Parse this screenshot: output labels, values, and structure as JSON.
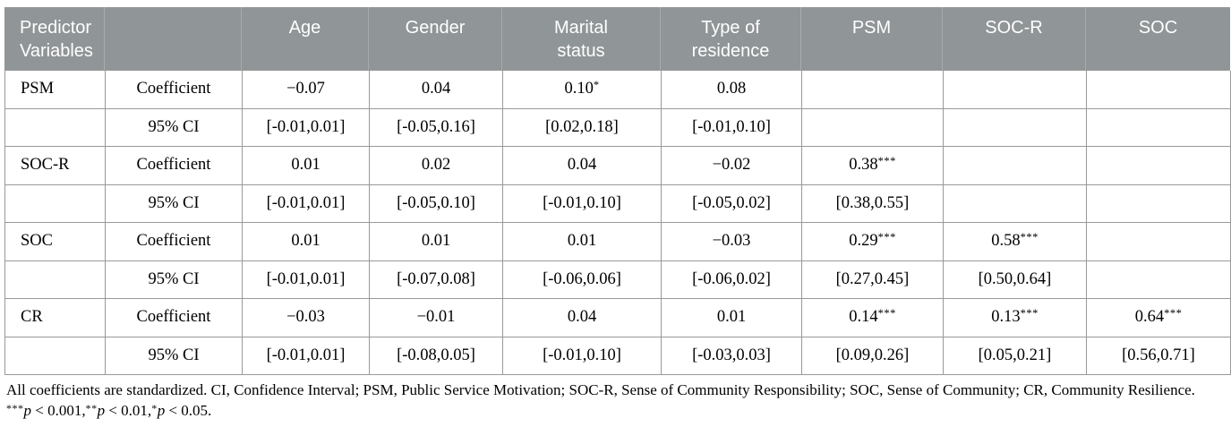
{
  "colors": {
    "header_bg": "#909597",
    "header_text": "#ffffff",
    "header_separator": "#a8abad",
    "grid_line": "#999999",
    "body_text": "#000000"
  },
  "table": {
    "columns": [
      "Predictor\nVariables",
      "",
      "Age",
      "Gender",
      "Marital\nstatus",
      "Type of\nresidence",
      "PSM",
      "SOC-R",
      "SOC"
    ],
    "rows": [
      {
        "predictor": "PSM",
        "label": "Coefficient",
        "values": [
          "−0.07",
          "0.04",
          "0.10*",
          "0.08",
          "",
          "",
          ""
        ]
      },
      {
        "predictor": "",
        "label": "95% CI",
        "values": [
          "[-0.01,0.01]",
          "[-0.05,0.16]",
          "[0.02,0.18]",
          "[-0.01,0.10]",
          "",
          "",
          ""
        ]
      },
      {
        "predictor": "SOC-R",
        "label": "Coefficient",
        "values": [
          "0.01",
          "0.02",
          "0.04",
          "−0.02",
          "0.38***",
          "",
          ""
        ]
      },
      {
        "predictor": "",
        "label": "95% CI",
        "values": [
          "[-0.01,0.01]",
          "[-0.05,0.10]",
          "[-0.01,0.10]",
          "[-0.05,0.02]",
          "[0.38,0.55]",
          "",
          ""
        ]
      },
      {
        "predictor": "SOC",
        "label": "Coefficient",
        "values": [
          "0.01",
          "0.01",
          "0.01",
          "−0.03",
          "0.29***",
          "0.58***",
          ""
        ]
      },
      {
        "predictor": "",
        "label": "95% CI",
        "values": [
          "[-0.01,0.01]",
          "[-0.07,0.08]",
          "[-0.06,0.06]",
          "[-0.06,0.02]",
          "[0.27,0.45]",
          "[0.50,0.64]",
          ""
        ]
      },
      {
        "predictor": "CR",
        "label": "Coefficient",
        "values": [
          "−0.03",
          "−0.01",
          "0.04",
          "0.01",
          "0.14***",
          "0.13***",
          "0.64***"
        ]
      },
      {
        "predictor": "",
        "label": "95% CI",
        "values": [
          "[-0.01,0.01]",
          "[-0.08,0.05]",
          "[-0.01,0.10]",
          "[-0.03,0.03]",
          "[0.09,0.26]",
          "[0.05,0.21]",
          "[0.56,0.71]"
        ]
      }
    ]
  },
  "footnotes": {
    "line1": "All coefficients are standardized. CI, Confidence Interval; PSM, Public Service Motivation; SOC-R, Sense of Community Responsibility; SOC, Sense of Community; CR, Community Resilience.",
    "line2_segments": [
      {
        "text": "***",
        "style": "sup"
      },
      {
        "text": "p",
        "style": "italic"
      },
      {
        "text": " < 0.001,",
        "style": "normal"
      },
      {
        "text": "**",
        "style": "sup"
      },
      {
        "text": "p",
        "style": "italic"
      },
      {
        "text": " < 0.01,",
        "style": "normal"
      },
      {
        "text": "*",
        "style": "sup"
      },
      {
        "text": "p",
        "style": "italic"
      },
      {
        "text": " < 0.05.",
        "style": "normal"
      }
    ]
  }
}
